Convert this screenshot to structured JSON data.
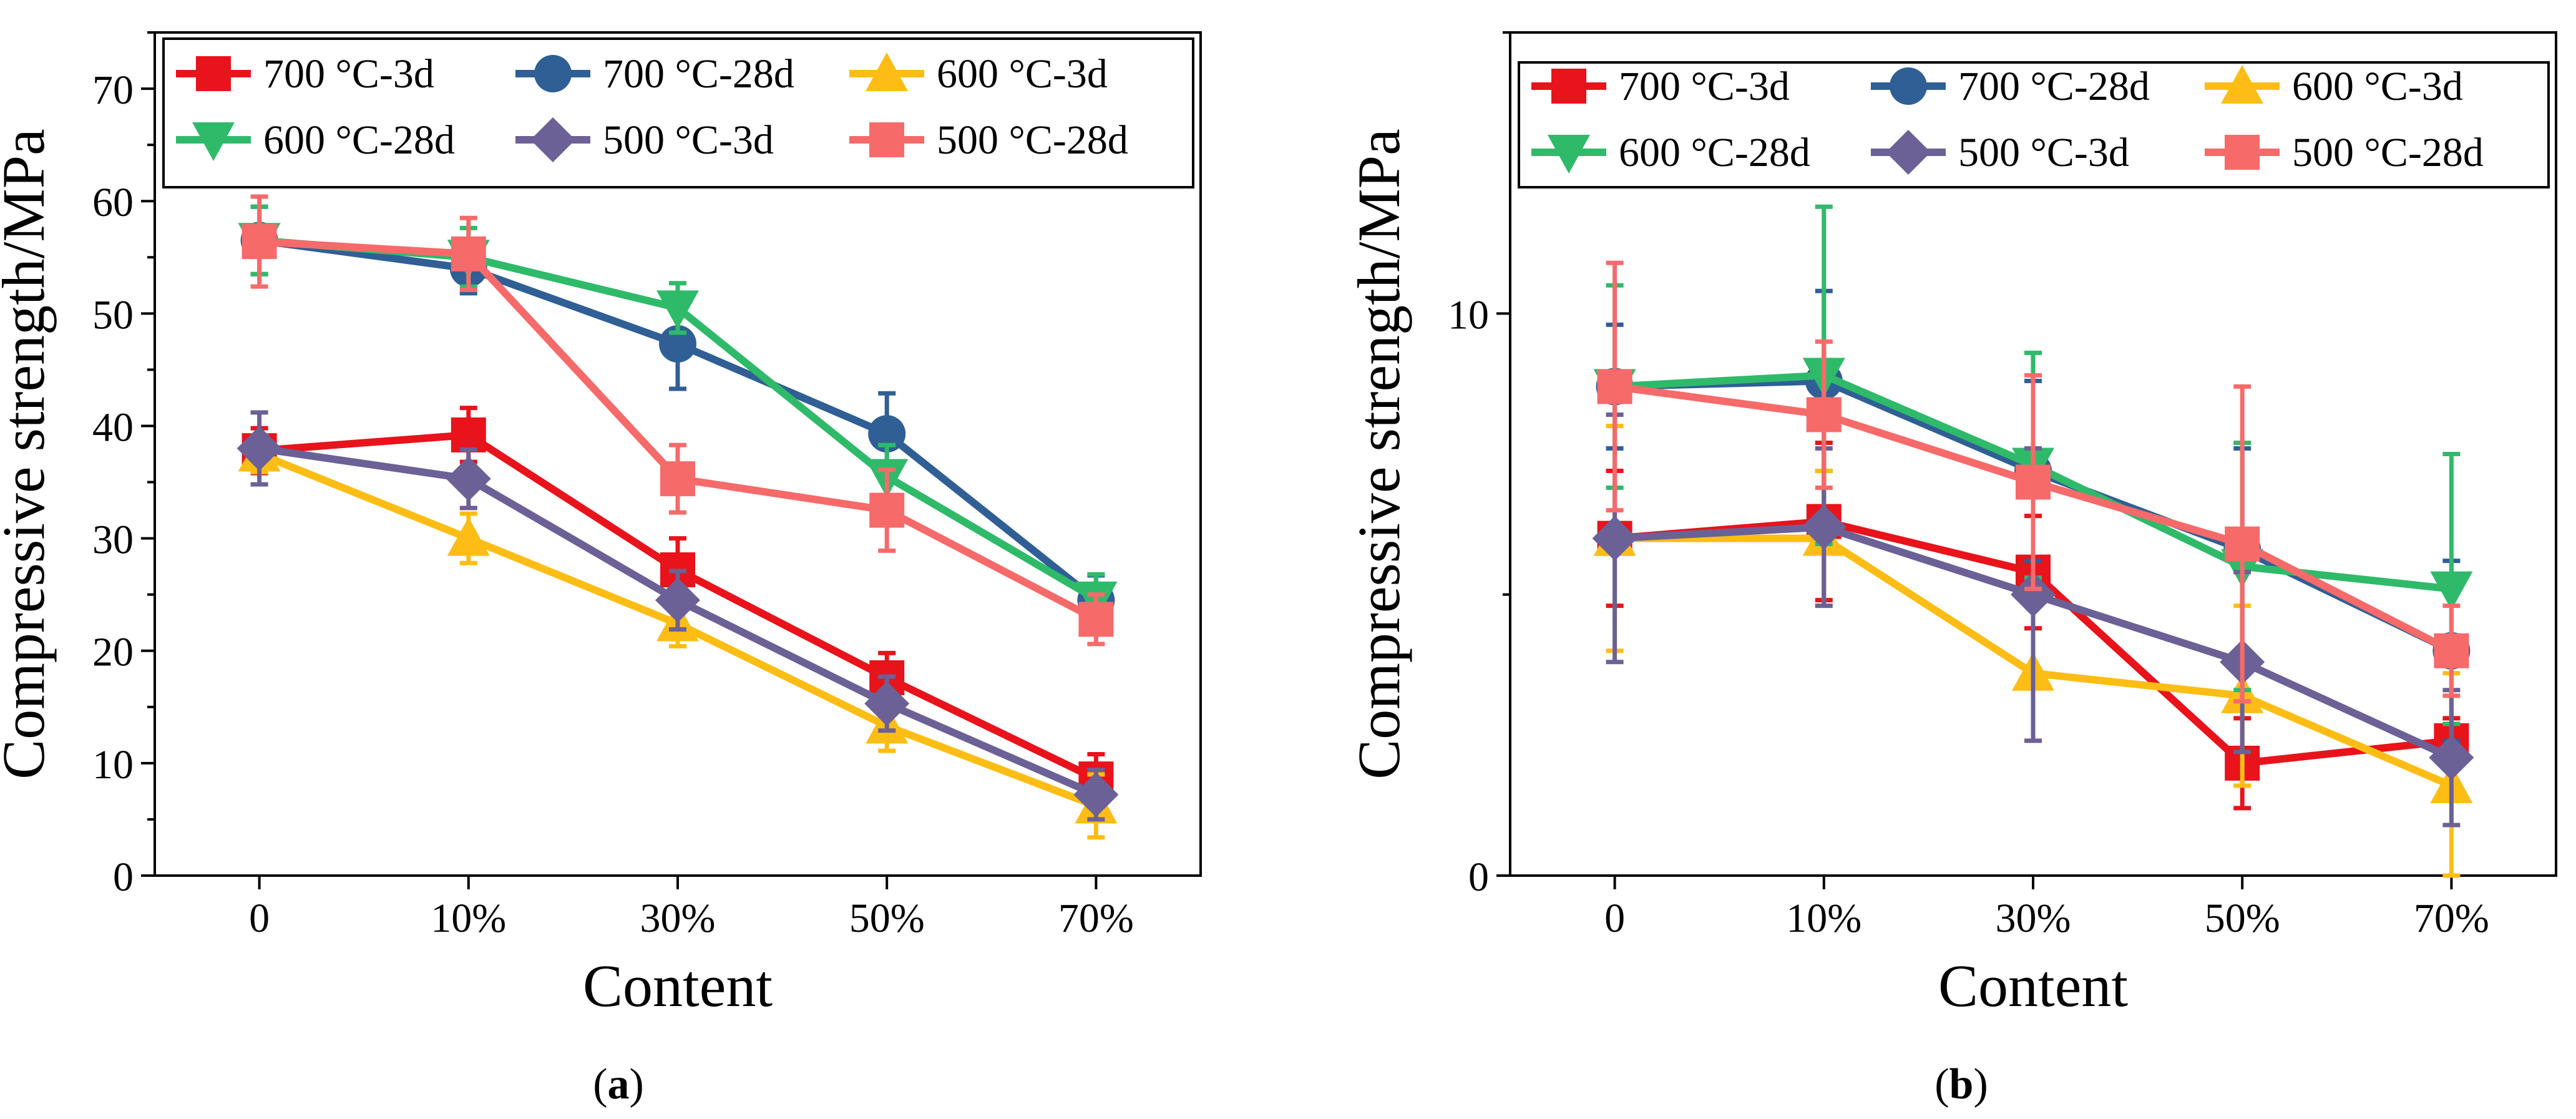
{
  "chart_data": [
    {
      "type": "line",
      "panel_label": "(a)",
      "panel_letter": "a",
      "xlabel": "Content",
      "ylabel": "Compressive strength/MPa",
      "categories": [
        "0",
        "10%",
        "30%",
        "50%",
        "70%"
      ],
      "ylim": [
        0,
        75
      ],
      "yticks": [
        0,
        10,
        20,
        30,
        40,
        50,
        60,
        70
      ],
      "ytick_labels": [
        "0",
        "10",
        "20",
        "30",
        "40",
        "50",
        "60",
        "70"
      ],
      "legend_position": "top",
      "series": [
        {
          "name": "700 °C-3d",
          "color": "#e8131b",
          "marker": "square",
          "values": [
            37.8,
            39.2,
            27.2,
            17.6,
            8.6
          ],
          "errors": [
            2.0,
            2.4,
            2.8,
            2.2,
            2.2
          ]
        },
        {
          "name": "700 °C-28d",
          "color": "#2f5f95",
          "marker": "circle",
          "values": [
            56.5,
            54.0,
            47.3,
            39.3,
            24.5
          ],
          "errors": [
            3.0,
            2.2,
            4.0,
            3.6,
            2.2
          ]
        },
        {
          "name": "600 °C-3d",
          "color": "#fdbd14",
          "marker": "triangle-up",
          "values": [
            37.5,
            30.0,
            22.4,
            13.3,
            6.2
          ],
          "errors": [
            1.6,
            2.2,
            2.0,
            2.2,
            2.8
          ]
        },
        {
          "name": "600 °C-28d",
          "color": "#2fba6a",
          "marker": "triangle-down",
          "values": [
            56.5,
            55.0,
            50.5,
            35.5,
            24.6
          ],
          "errors": [
            3.0,
            2.6,
            2.2,
            2.8,
            2.2
          ]
        },
        {
          "name": "500 °C-3d",
          "color": "#6b6196",
          "marker": "diamond",
          "values": [
            38.0,
            35.3,
            24.5,
            15.3,
            7.2
          ],
          "errors": [
            3.2,
            2.6,
            2.6,
            2.4,
            2.2
          ]
        },
        {
          "name": "500 °C-28d",
          "color": "#f76a6a",
          "marker": "square",
          "values": [
            56.4,
            55.3,
            35.3,
            32.5,
            22.8
          ],
          "errors": [
            4.0,
            3.2,
            3.0,
            3.6,
            2.2
          ]
        }
      ]
    },
    {
      "type": "line",
      "panel_label": "(b)",
      "panel_letter": "b",
      "xlabel": "Content",
      "ylabel": "Compressive strength/MPa",
      "categories": [
        "0",
        "10%",
        "30%",
        "50%",
        "70%"
      ],
      "ylim": [
        0,
        15
      ],
      "yticks": [
        0,
        10
      ],
      "ytick_labels": [
        "0",
        "10"
      ],
      "legend_position": "top",
      "series": [
        {
          "name": "700 °C-3d",
          "color": "#e8131b",
          "marker": "square",
          "values": [
            6.0,
            6.3,
            5.4,
            2.0,
            2.4
          ],
          "errors": [
            1.2,
            1.4,
            1.0,
            0.8,
            0.4
          ]
        },
        {
          "name": "700 °C-28d",
          "color": "#2f5f95",
          "marker": "circle",
          "values": [
            8.7,
            8.8,
            7.2,
            5.8,
            4.0
          ],
          "errors": [
            1.1,
            1.6,
            1.6,
            1.8,
            1.6
          ]
        },
        {
          "name": "600 °C-3d",
          "color": "#fdbd14",
          "marker": "triangle-up",
          "values": [
            6.0,
            6.0,
            3.6,
            3.2,
            1.6
          ],
          "errors": [
            2.0,
            1.2,
            1.2,
            1.6,
            2.0
          ]
        },
        {
          "name": "600 °C-28d",
          "color": "#2fba6a",
          "marker": "triangle-down",
          "values": [
            8.7,
            8.9,
            7.3,
            5.5,
            5.1
          ],
          "errors": [
            1.8,
            3.0,
            2.0,
            2.2,
            2.4
          ]
        },
        {
          "name": "500 °C-3d",
          "color": "#6b6196",
          "marker": "diamond",
          "values": [
            6.0,
            6.2,
            5.0,
            3.8,
            2.1
          ],
          "errors": [
            2.2,
            1.4,
            2.6,
            1.6,
            1.2
          ]
        },
        {
          "name": "500 °C-28d",
          "color": "#f76a6a",
          "marker": "square",
          "values": [
            8.7,
            8.2,
            7.0,
            5.9,
            4.0
          ],
          "errors": [
            2.2,
            1.3,
            1.9,
            2.8,
            0.8
          ]
        }
      ]
    }
  ]
}
